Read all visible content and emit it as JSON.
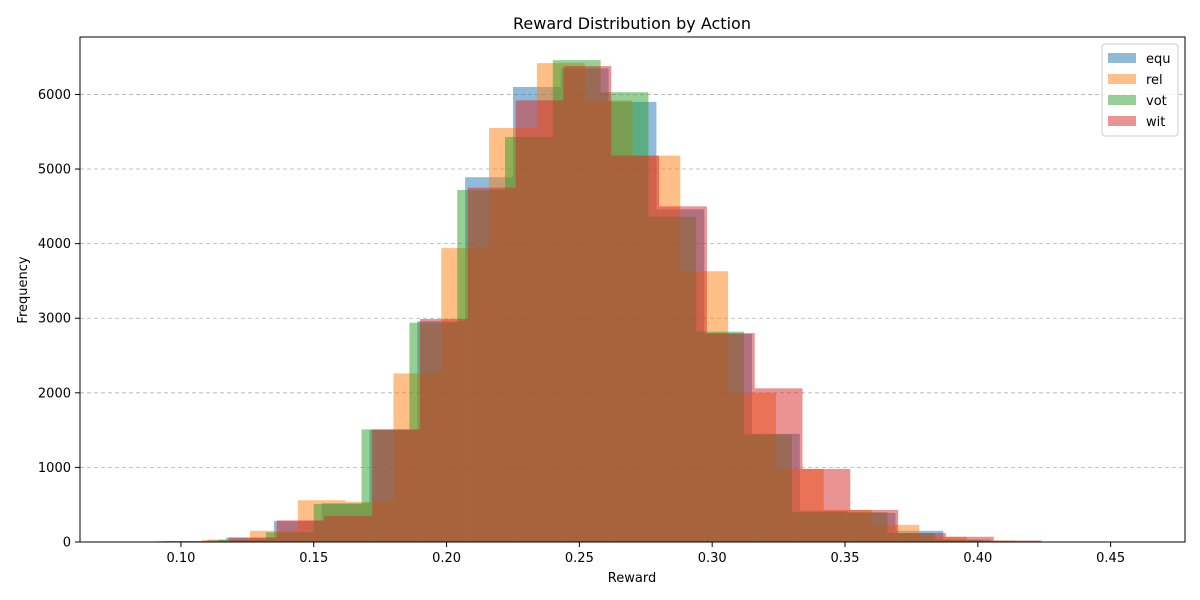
{
  "chart_data": {
    "type": "bar",
    "subtype": "overlapping-histogram",
    "title": "Reward Distribution by Action",
    "xlabel": "Reward",
    "ylabel": "Frequency",
    "xlim": [
      0.062,
      0.478
    ],
    "ylim": [
      0,
      6770
    ],
    "xticks": [
      0.1,
      0.15,
      0.2,
      0.25,
      0.3,
      0.35,
      0.4,
      0.45
    ],
    "xtick_labels": [
      "0.10",
      "0.15",
      "0.20",
      "0.25",
      "0.30",
      "0.35",
      "0.40",
      "0.45"
    ],
    "yticks": [
      0,
      1000,
      2000,
      3000,
      4000,
      5000,
      6000
    ],
    "ytick_labels": [
      "0",
      "1000",
      "2000",
      "3000",
      "4000",
      "5000",
      "6000"
    ],
    "grid": {
      "y": true,
      "x": false,
      "style": "dashed"
    },
    "legend_position": "top-right",
    "series": [
      {
        "name": "equ",
        "color": "#1f77b4",
        "bins": [
          [
            0.092,
            0.11,
            10
          ],
          [
            0.11,
            0.117,
            30
          ],
          [
            0.117,
            0.135,
            60
          ],
          [
            0.135,
            0.153,
            280
          ],
          [
            0.153,
            0.171,
            520
          ],
          [
            0.171,
            0.189,
            1500
          ],
          [
            0.189,
            0.207,
            2960
          ],
          [
            0.207,
            0.225,
            4890
          ],
          [
            0.225,
            0.243,
            6100
          ],
          [
            0.243,
            0.261,
            6350
          ],
          [
            0.261,
            0.279,
            5900
          ],
          [
            0.279,
            0.297,
            4460
          ],
          [
            0.297,
            0.315,
            2790
          ],
          [
            0.315,
            0.333,
            1450
          ],
          [
            0.333,
            0.351,
            420
          ],
          [
            0.351,
            0.369,
            390
          ],
          [
            0.369,
            0.387,
            150
          ],
          [
            0.387,
            0.405,
            30
          ],
          [
            0.405,
            0.423,
            10
          ],
          [
            0.423,
            0.441,
            5
          ]
        ]
      },
      {
        "name": "rel",
        "color": "#ff7f0e",
        "bins": [
          [
            0.1,
            0.108,
            10
          ],
          [
            0.108,
            0.126,
            30
          ],
          [
            0.126,
            0.144,
            150
          ],
          [
            0.144,
            0.162,
            560
          ],
          [
            0.162,
            0.18,
            540
          ],
          [
            0.18,
            0.198,
            2260
          ],
          [
            0.198,
            0.216,
            3940
          ],
          [
            0.216,
            0.234,
            5550
          ],
          [
            0.234,
            0.252,
            6420
          ],
          [
            0.252,
            0.27,
            5920
          ],
          [
            0.27,
            0.288,
            5180
          ],
          [
            0.288,
            0.306,
            3630
          ],
          [
            0.306,
            0.324,
            2000
          ],
          [
            0.324,
            0.342,
            980
          ],
          [
            0.342,
            0.36,
            430
          ],
          [
            0.36,
            0.378,
            230
          ],
          [
            0.378,
            0.396,
            70
          ],
          [
            0.396,
            0.414,
            20
          ],
          [
            0.414,
            0.432,
            5
          ]
        ]
      },
      {
        "name": "vot",
        "color": "#2ca02c",
        "bins": [
          [
            0.09,
            0.114,
            10
          ],
          [
            0.114,
            0.132,
            30
          ],
          [
            0.132,
            0.15,
            130
          ],
          [
            0.15,
            0.168,
            510
          ],
          [
            0.168,
            0.186,
            1510
          ],
          [
            0.186,
            0.204,
            2940
          ],
          [
            0.204,
            0.222,
            4720
          ],
          [
            0.222,
            0.24,
            5430
          ],
          [
            0.24,
            0.258,
            6460
          ],
          [
            0.258,
            0.276,
            6030
          ],
          [
            0.276,
            0.294,
            4360
          ],
          [
            0.294,
            0.312,
            2820
          ],
          [
            0.312,
            0.33,
            1440
          ],
          [
            0.33,
            0.348,
            400
          ],
          [
            0.348,
            0.366,
            400
          ],
          [
            0.366,
            0.384,
            120
          ],
          [
            0.384,
            0.402,
            30
          ],
          [
            0.402,
            0.42,
            5
          ]
        ]
      },
      {
        "name": "wit",
        "color": "#d62728",
        "bins": [
          [
            0.094,
            0.118,
            10
          ],
          [
            0.118,
            0.136,
            60
          ],
          [
            0.136,
            0.154,
            290
          ],
          [
            0.154,
            0.172,
            350
          ],
          [
            0.172,
            0.19,
            1510
          ],
          [
            0.19,
            0.208,
            2990
          ],
          [
            0.208,
            0.226,
            4750
          ],
          [
            0.226,
            0.244,
            5920
          ],
          [
            0.244,
            0.262,
            6380
          ],
          [
            0.262,
            0.28,
            5180
          ],
          [
            0.28,
            0.298,
            4500
          ],
          [
            0.298,
            0.316,
            2800
          ],
          [
            0.316,
            0.334,
            2060
          ],
          [
            0.334,
            0.352,
            980
          ],
          [
            0.352,
            0.37,
            430
          ],
          [
            0.37,
            0.388,
            120
          ],
          [
            0.388,
            0.406,
            70
          ],
          [
            0.406,
            0.424,
            20
          ],
          [
            0.424,
            0.442,
            5
          ]
        ]
      }
    ]
  }
}
